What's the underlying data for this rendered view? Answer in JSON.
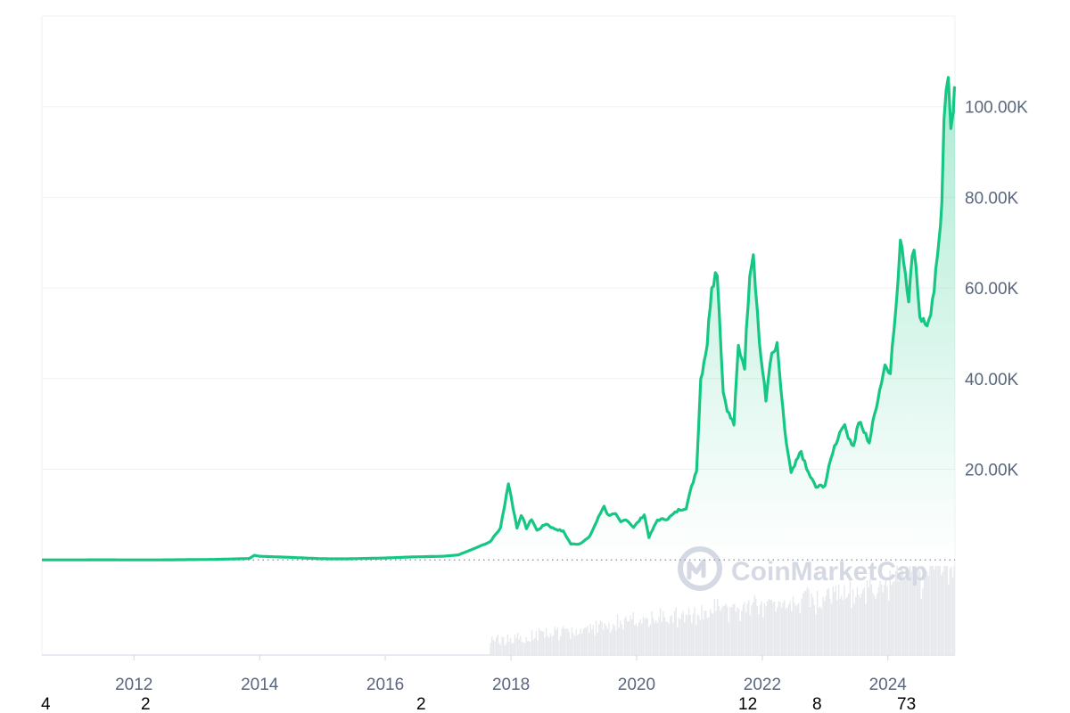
{
  "colors": {
    "line": "#16c784",
    "line_early": "#ea3943",
    "area_top": "#16c784",
    "grid": "#eff2f5",
    "axis_text": "#58667e",
    "baseline_dots": "#808a9d",
    "volume": "#e6e8ec",
    "watermark": "#d4d9e3"
  },
  "watermark": {
    "text": "CoinMarketCap",
    "icon": "coinmarketcap-logo-icon"
  },
  "footer_numbers": [
    "4",
    "2",
    "2",
    "12",
    "8",
    "73"
  ],
  "chart_data": {
    "type": "area",
    "title": "",
    "xlabel": "",
    "ylabel": "",
    "xlim": [
      "2010-07-15",
      "2025-01-25"
    ],
    "ylim": [
      -21000,
      120000
    ],
    "grid": true,
    "x_ticks": [
      "2012",
      "2014",
      "2016",
      "2018",
      "2020",
      "2022",
      "2024"
    ],
    "y_ticks": [
      "20.00K",
      "40.00K",
      "60.00K",
      "80.00K",
      "100.00K"
    ],
    "y_tick_values": [
      20000,
      40000,
      60000,
      80000,
      100000
    ],
    "baseline_value": 0,
    "series": [
      {
        "values": [
          [
            "2010-07-15",
            0.05
          ],
          [
            "2011-06-01",
            15
          ],
          [
            "2012-06-01",
            6
          ],
          [
            "2013-04-01",
            100
          ],
          [
            "2013-11-01",
            300
          ],
          [
            "2013-12-01",
            1000
          ],
          [
            "2014-01-01",
            800
          ],
          [
            "2014-06-01",
            600
          ],
          [
            "2015-01-01",
            250
          ],
          [
            "2015-06-01",
            240
          ],
          [
            "2016-01-01",
            420
          ],
          [
            "2016-06-01",
            650
          ],
          [
            "2016-12-01",
            800
          ],
          [
            "2017-03-01",
            1100
          ],
          [
            "2017-06-01",
            2500
          ],
          [
            "2017-09-01",
            4000
          ],
          [
            "2017-11-01",
            7000
          ],
          [
            "2017-12-17",
            17000
          ],
          [
            "2018-01-01",
            14000
          ],
          [
            "2018-02-05",
            7000
          ],
          [
            "2018-03-01",
            10000
          ],
          [
            "2018-04-01",
            7000
          ],
          [
            "2018-05-01",
            9000
          ],
          [
            "2018-06-01",
            6500
          ],
          [
            "2018-07-25",
            8000
          ],
          [
            "2018-09-01",
            7000
          ],
          [
            "2018-11-01",
            6300
          ],
          [
            "2018-12-15",
            3500
          ],
          [
            "2019-02-01",
            3500
          ],
          [
            "2019-04-01",
            5000
          ],
          [
            "2019-06-26",
            12000
          ],
          [
            "2019-07-15",
            10000
          ],
          [
            "2019-09-01",
            10000
          ],
          [
            "2019-10-01",
            8300
          ],
          [
            "2019-11-01",
            9000
          ],
          [
            "2019-12-15",
            7200
          ],
          [
            "2020-02-15",
            10000
          ],
          [
            "2020-03-13",
            5000
          ],
          [
            "2020-05-01",
            8800
          ],
          [
            "2020-07-01",
            9100
          ],
          [
            "2020-09-01",
            11000
          ],
          [
            "2020-10-15",
            11500
          ],
          [
            "2020-11-15",
            16000
          ],
          [
            "2020-12-15",
            20000
          ],
          [
            "2021-01-08",
            40000
          ],
          [
            "2021-02-15",
            48000
          ],
          [
            "2021-03-13",
            61000
          ],
          [
            "2021-04-14",
            64000
          ],
          [
            "2021-05-19",
            37000
          ],
          [
            "2021-06-22",
            32000
          ],
          [
            "2021-07-20",
            30000
          ],
          [
            "2021-08-15",
            47000
          ],
          [
            "2021-09-20",
            43000
          ],
          [
            "2021-10-20",
            64000
          ],
          [
            "2021-11-10",
            68000
          ],
          [
            "2021-12-15",
            48000
          ],
          [
            "2022-01-22",
            35000
          ],
          [
            "2022-02-15",
            44000
          ],
          [
            "2022-03-28",
            47000
          ],
          [
            "2022-05-12",
            28000
          ],
          [
            "2022-06-18",
            19000
          ],
          [
            "2022-08-15",
            24000
          ],
          [
            "2022-09-15",
            20000
          ],
          [
            "2022-11-09",
            16000
          ],
          [
            "2022-12-31",
            16500
          ],
          [
            "2023-02-15",
            24000
          ],
          [
            "2023-04-15",
            30000
          ],
          [
            "2023-06-15",
            25000
          ],
          [
            "2023-07-15",
            30500
          ],
          [
            "2023-09-15",
            26000
          ],
          [
            "2023-10-25",
            34000
          ],
          [
            "2023-12-15",
            43000
          ],
          [
            "2024-01-15",
            42000
          ],
          [
            "2024-02-28",
            60000
          ],
          [
            "2024-03-14",
            72000
          ],
          [
            "2024-05-01",
            58000
          ],
          [
            "2024-06-01",
            70000
          ],
          [
            "2024-07-05",
            54000
          ],
          [
            "2024-08-05",
            52000
          ],
          [
            "2024-09-06",
            53000
          ],
          [
            "2024-10-15",
            66000
          ],
          [
            "2024-11-10",
            80000
          ],
          [
            "2024-11-22",
            99000
          ],
          [
            "2024-12-17",
            106000
          ],
          [
            "2025-01-01",
            93000
          ],
          [
            "2025-01-15",
            100000
          ],
          [
            "2025-01-22",
            105000
          ],
          [
            "2025-01-25",
            104000
          ]
        ]
      }
    ]
  }
}
